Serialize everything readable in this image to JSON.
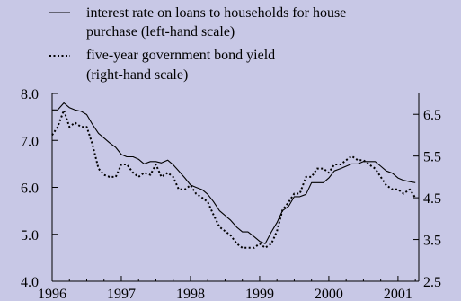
{
  "chart_data": {
    "type": "line",
    "title": "",
    "legend": {
      "placement": "top",
      "entries": [
        {
          "line1": "interest rate on loans to households for house",
          "line2": "purchase (left-hand scale)",
          "style": "solid"
        },
        {
          "line1": "five-year government bond yield",
          "line2": "(right-hand scale)",
          "style": "dotted"
        }
      ]
    },
    "x_ticks": [
      "1996",
      "1997",
      "1998",
      "1999",
      "2000",
      "2001"
    ],
    "x_range": [
      1996,
      2001.3
    ],
    "left_axis": {
      "ticks": [
        "4.0",
        "5.0",
        "6.0",
        "7.0",
        "8.0"
      ],
      "range": [
        4.0,
        8.0
      ]
    },
    "right_axis": {
      "ticks": [
        "2.5",
        "3.5",
        "4.5",
        "5.5",
        "6.5"
      ],
      "range": [
        2.5,
        7.0
      ]
    },
    "series": [
      {
        "name": "interest rate on loans to households for house purchase (left-hand scale)",
        "axis": "left",
        "style": "solid",
        "color": "#000000",
        "x": [
          1996.0,
          1996.08,
          1996.17,
          1996.25,
          1996.33,
          1996.42,
          1996.5,
          1996.58,
          1996.67,
          1996.75,
          1996.83,
          1996.92,
          1997.0,
          1997.08,
          1997.17,
          1997.25,
          1997.33,
          1997.42,
          1997.5,
          1997.58,
          1997.67,
          1997.75,
          1997.83,
          1997.92,
          1998.0,
          1998.08,
          1998.17,
          1998.25,
          1998.33,
          1998.42,
          1998.5,
          1998.58,
          1998.67,
          1998.75,
          1998.83,
          1998.92,
          1999.0,
          1999.08,
          1999.17,
          1999.25,
          1999.33,
          1999.42,
          1999.5,
          1999.58,
          1999.67,
          1999.75,
          1999.83,
          1999.92,
          2000.0,
          2000.08,
          2000.17,
          2000.25,
          2000.33,
          2000.42,
          2000.5,
          2000.58,
          2000.67,
          2000.75,
          2000.83,
          2000.92,
          2001.0,
          2001.08,
          2001.17,
          2001.25
        ],
        "values": [
          7.65,
          7.65,
          7.8,
          7.7,
          7.65,
          7.62,
          7.55,
          7.35,
          7.15,
          7.05,
          6.95,
          6.85,
          6.7,
          6.65,
          6.65,
          6.6,
          6.5,
          6.55,
          6.55,
          6.52,
          6.58,
          6.48,
          6.35,
          6.2,
          6.05,
          6.0,
          5.95,
          5.85,
          5.7,
          5.5,
          5.4,
          5.3,
          5.15,
          5.05,
          5.05,
          4.95,
          4.85,
          4.8,
          5.05,
          5.25,
          5.5,
          5.6,
          5.8,
          5.8,
          5.85,
          6.1,
          6.1,
          6.1,
          6.2,
          6.35,
          6.4,
          6.45,
          6.5,
          6.5,
          6.55,
          6.55,
          6.55,
          6.45,
          6.35,
          6.3,
          6.2,
          6.15,
          6.12,
          6.1
        ]
      },
      {
        "name": "five-year government bond yield (right-hand scale)",
        "axis": "right",
        "style": "dotted",
        "color": "#000000",
        "x": [
          1996.0,
          1996.08,
          1996.17,
          1996.25,
          1996.33,
          1996.42,
          1996.5,
          1996.58,
          1996.67,
          1996.75,
          1996.83,
          1996.92,
          1997.0,
          1997.08,
          1997.17,
          1997.25,
          1997.33,
          1997.42,
          1997.5,
          1997.58,
          1997.67,
          1997.75,
          1997.83,
          1997.92,
          1998.0,
          1998.08,
          1998.17,
          1998.25,
          1998.33,
          1998.42,
          1998.5,
          1998.58,
          1998.67,
          1998.75,
          1998.83,
          1998.92,
          1999.0,
          1999.08,
          1999.17,
          1999.25,
          1999.33,
          1999.42,
          1999.5,
          1999.58,
          1999.67,
          1999.75,
          1999.83,
          1999.92,
          2000.0,
          2000.08,
          2000.17,
          2000.25,
          2000.33,
          2000.42,
          2000.5,
          2000.58,
          2000.67,
          2000.75,
          2000.83,
          2000.92,
          2001.0,
          2001.08,
          2001.17,
          2001.25
        ],
        "values": [
          6.0,
          6.2,
          6.6,
          6.2,
          6.3,
          6.2,
          6.2,
          5.8,
          5.2,
          5.05,
          5.0,
          5.0,
          5.3,
          5.3,
          5.1,
          5.0,
          5.1,
          5.05,
          5.3,
          5.0,
          5.1,
          5.0,
          4.7,
          4.7,
          4.8,
          4.6,
          4.5,
          4.4,
          4.1,
          3.8,
          3.7,
          3.6,
          3.4,
          3.3,
          3.3,
          3.3,
          3.4,
          3.3,
          3.4,
          3.7,
          4.2,
          4.4,
          4.6,
          4.6,
          5.0,
          5.0,
          5.2,
          5.2,
          5.1,
          5.3,
          5.3,
          5.4,
          5.5,
          5.4,
          5.4,
          5.3,
          5.2,
          5.0,
          4.8,
          4.7,
          4.7,
          4.6,
          4.7,
          4.5
        ]
      }
    ],
    "grid": false
  }
}
